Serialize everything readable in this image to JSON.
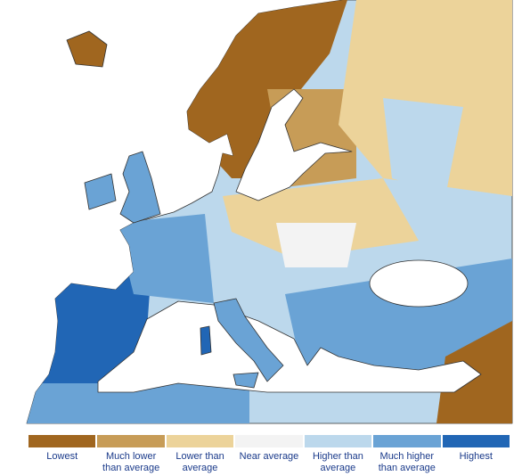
{
  "legend": [
    {
      "label": "Lowest",
      "color": "#a0661f"
    },
    {
      "label": "Much lower than average",
      "color": "#c79c57"
    },
    {
      "label": "Lower than average",
      "color": "#ecd39a"
    },
    {
      "label": "Near average",
      "color": "#f3f3f3"
    },
    {
      "label": "Higher than average",
      "color": "#bcd8ec"
    },
    {
      "label": "Much higher than average",
      "color": "#6aa3d5"
    },
    {
      "label": "Highest",
      "color": "#2166b5"
    }
  ]
}
